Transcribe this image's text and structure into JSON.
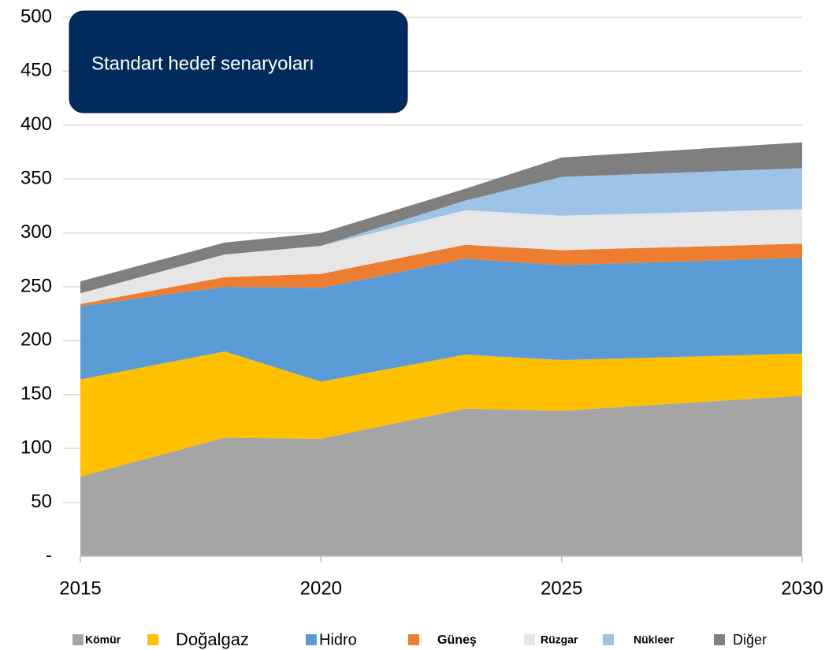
{
  "chart_data": {
    "type": "stacked_area",
    "title": "Standart hedef senaryoları",
    "x": [
      2015,
      2018,
      2020,
      2023,
      2025,
      2030
    ],
    "xlim": [
      2015,
      2030
    ],
    "xticks": [
      2015,
      2020,
      2025,
      2030
    ],
    "ylim": [
      0,
      500
    ],
    "yticks": [
      {
        "value": 0,
        "label": "-"
      },
      50,
      100,
      150,
      200,
      250,
      300,
      350,
      400,
      450,
      500
    ],
    "grid": true,
    "legend": "bottom",
    "series": [
      {
        "name": "Kömür",
        "color": "#a5a5a5",
        "values": [
          74,
          110,
          109,
          137,
          135,
          149
        ]
      },
      {
        "name": "Doğalgaz",
        "color": "#ffc000",
        "values": [
          90,
          80,
          53,
          50,
          47,
          39
        ]
      },
      {
        "name": "Hidro",
        "color": "#5b9bd5",
        "values": [
          68,
          60,
          87,
          89,
          88,
          89
        ]
      },
      {
        "name": "Güneş",
        "color": "#ed7d31",
        "values": [
          2,
          9,
          13,
          13,
          14,
          13
        ]
      },
      {
        "name": "Rüzgar",
        "color": "#e7e6e6",
        "values": [
          10,
          21,
          26,
          32,
          32,
          32
        ]
      },
      {
        "name": "Nükleer",
        "color": "#9dc3e6",
        "values": [
          0,
          0,
          0,
          9,
          36,
          38
        ]
      },
      {
        "name": "Diğer",
        "color": "#7f7f7f",
        "values": [
          11,
          11,
          12,
          11,
          18,
          24
        ]
      }
    ]
  }
}
